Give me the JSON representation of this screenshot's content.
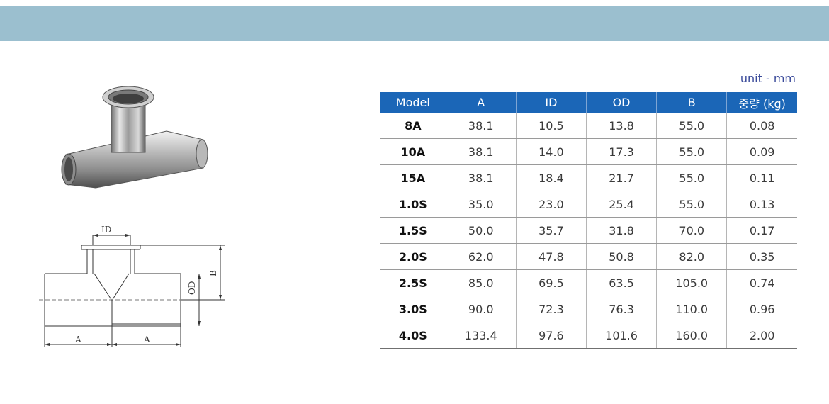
{
  "unit_label": "unit - mm",
  "drawing_labels": {
    "id": "ID",
    "b": "B",
    "od": "OD",
    "a_left": "A",
    "a_right": "A"
  },
  "table": {
    "headers": [
      "Model",
      "A",
      "ID",
      "OD",
      "B",
      "중량 (kg)"
    ],
    "rows": [
      [
        "8A",
        "38.1",
        "10.5",
        "13.8",
        "55.0",
        "0.08"
      ],
      [
        "10A",
        "38.1",
        "14.0",
        "17.3",
        "55.0",
        "0.09"
      ],
      [
        "15A",
        "38.1",
        "18.4",
        "21.7",
        "55.0",
        "0.11"
      ],
      [
        "1.0S",
        "35.0",
        "23.0",
        "25.4",
        "55.0",
        "0.13"
      ],
      [
        "1.5S",
        "50.0",
        "35.7",
        "31.8",
        "70.0",
        "0.17"
      ],
      [
        "2.0S",
        "62.0",
        "47.8",
        "50.8",
        "82.0",
        "0.35"
      ],
      [
        "2.5S",
        "85.0",
        "69.5",
        "63.5",
        "105.0",
        "0.74"
      ],
      [
        "3.0S",
        "90.0",
        "72.3",
        "76.3",
        "110.0",
        "0.96"
      ],
      [
        "4.0S",
        "133.4",
        "97.6",
        "101.6",
        "160.0",
        "2.00"
      ]
    ]
  },
  "colors": {
    "banner": "#9bbfcf",
    "header": "#1b66b7",
    "unit_text": "#3a4a9a"
  }
}
